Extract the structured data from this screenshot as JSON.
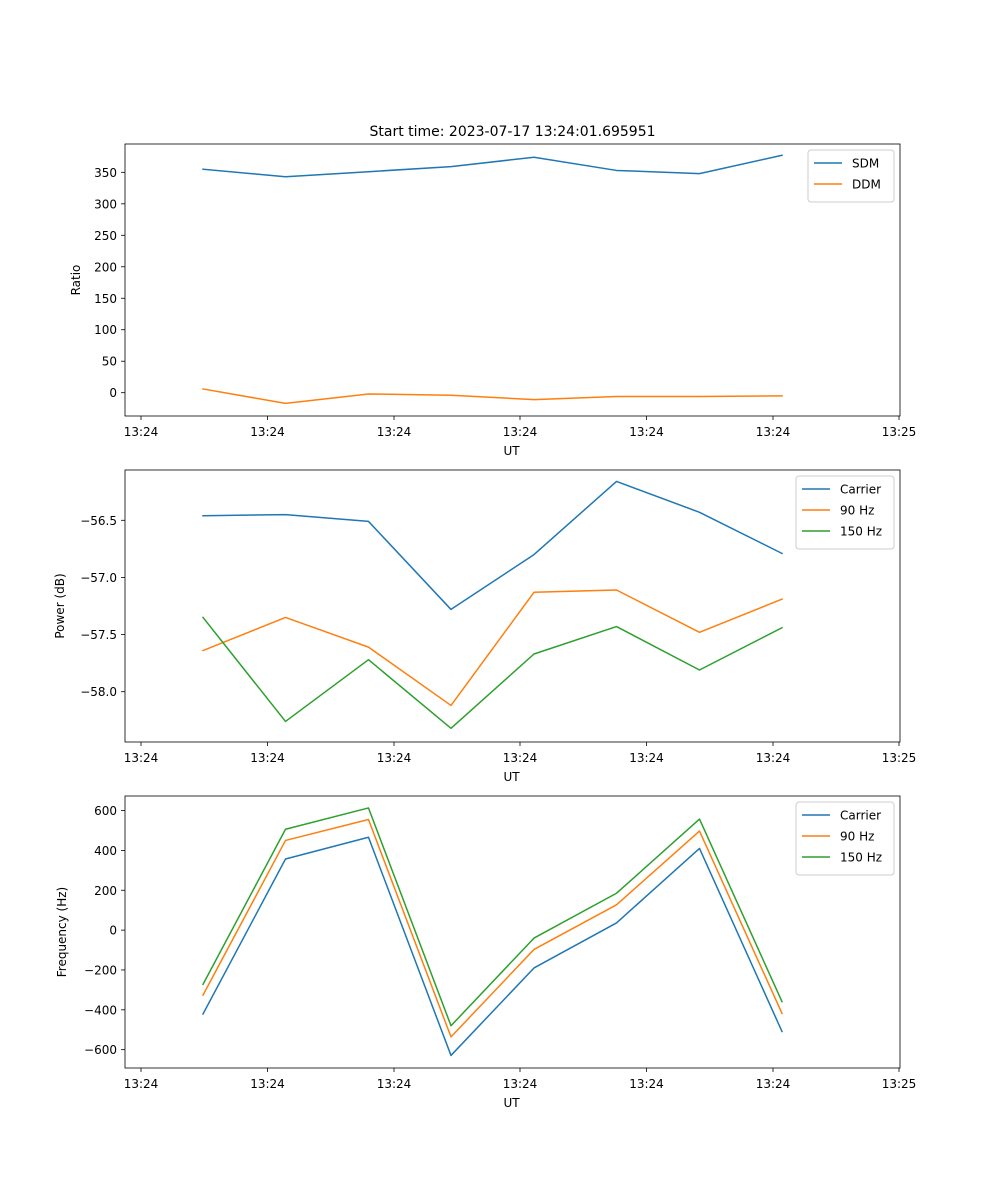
{
  "title": "Start time: 2023-07-17 13:24:01.695951",
  "colors": {
    "c0": "#1f77b4",
    "c1": "#ff7f0e",
    "c2": "#2ca02c"
  },
  "chart_data": [
    {
      "type": "line",
      "xlabel": "UT",
      "ylabel": "Ratio",
      "x_tick_labels": [
        "13:24",
        "13:24",
        "13:24",
        "13:24",
        "13:24",
        "13:24",
        "13:25"
      ],
      "y_ticks": [
        0,
        50,
        100,
        150,
        200,
        250,
        300,
        350
      ],
      "y_tick_labels": [
        "0",
        "50",
        "100",
        "150",
        "200",
        "250",
        "300",
        "350"
      ],
      "ylim": [
        -37,
        395
      ],
      "legend_position": "upper right",
      "series": [
        {
          "name": "SDM",
          "color": "#1f77b4",
          "values": [
            355,
            343,
            351,
            359,
            374,
            353,
            348,
            377
          ]
        },
        {
          "name": "DDM",
          "color": "#ff7f0e",
          "values": [
            6,
            -17,
            -2,
            -4,
            -11,
            -6,
            -6,
            -5
          ]
        }
      ]
    },
    {
      "type": "line",
      "xlabel": "UT",
      "ylabel": "Power (dB)",
      "x_tick_labels": [
        "13:24",
        "13:24",
        "13:24",
        "13:24",
        "13:24",
        "13:24",
        "13:25"
      ],
      "y_ticks": [
        -58.0,
        -57.5,
        -57.0,
        -56.5
      ],
      "y_tick_labels": [
        "−58.0",
        "−57.5",
        "−57.0",
        "−56.5"
      ],
      "ylim": [
        -58.44,
        -56.06
      ],
      "legend_position": "upper right",
      "series": [
        {
          "name": "Carrier",
          "color": "#1f77b4",
          "values": [
            -56.46,
            -56.45,
            -56.51,
            -57.28,
            -56.8,
            -56.16,
            -56.43,
            -56.79
          ]
        },
        {
          "name": "90 Hz",
          "color": "#ff7f0e",
          "values": [
            -57.64,
            -57.35,
            -57.61,
            -58.12,
            -57.13,
            -57.11,
            -57.48,
            -57.19
          ]
        },
        {
          "name": "150 Hz",
          "color": "#2ca02c",
          "values": [
            -57.35,
            -58.26,
            -57.72,
            -58.32,
            -57.67,
            -57.43,
            -57.81,
            -57.44
          ]
        }
      ]
    },
    {
      "type": "line",
      "xlabel": "UT",
      "ylabel": "Frequency (Hz)",
      "x_tick_labels": [
        "13:24",
        "13:24",
        "13:24",
        "13:24",
        "13:24",
        "13:24",
        "13:25"
      ],
      "y_ticks": [
        -600,
        -400,
        -200,
        0,
        200,
        400,
        600
      ],
      "y_tick_labels": [
        "−600",
        "−400",
        "−200",
        "0",
        "200",
        "400",
        "600"
      ],
      "ylim": [
        -692,
        673
      ],
      "legend_position": "upper right",
      "series": [
        {
          "name": "Carrier",
          "color": "#1f77b4",
          "values": [
            -421,
            357,
            466,
            -629,
            -190,
            36,
            410,
            -509
          ]
        },
        {
          "name": "90 Hz",
          "color": "#ff7f0e",
          "values": [
            -326,
            450,
            555,
            -536,
            -97,
            127,
            497,
            -418
          ]
        },
        {
          "name": "150 Hz",
          "color": "#2ca02c",
          "values": [
            -272,
            506,
            613,
            -480,
            -40,
            185,
            557,
            -359
          ]
        }
      ]
    }
  ]
}
